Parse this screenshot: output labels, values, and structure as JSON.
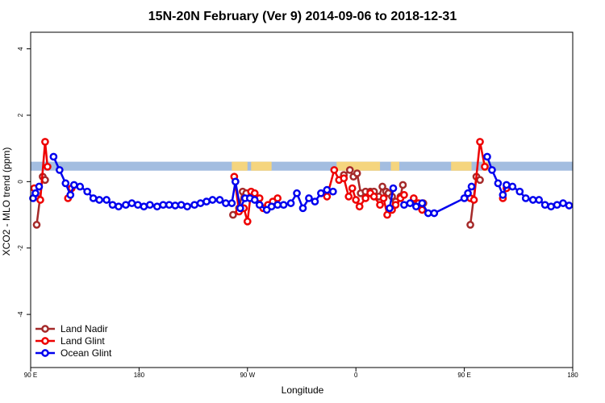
{
  "chart_data": {
    "type": "line",
    "title": "15N-20N February (Ver 9)   2014-09-06 to 2018-12-31",
    "xlabel": "Longitude",
    "ylabel": "XCO2 - MLO trend (ppm)",
    "x_ticks": [
      {
        "value": 0,
        "label": "90 E"
      },
      {
        "value": 90,
        "label": "180"
      },
      {
        "value": 180,
        "label": "90 W"
      },
      {
        "value": 270,
        "label": "0"
      },
      {
        "value": 360,
        "label": "90 E"
      },
      {
        "value": 450,
        "label": "180"
      }
    ],
    "y_ticks": [
      -4,
      -2,
      0,
      2,
      4
    ],
    "xlim": [
      0,
      450
    ],
    "ylim": [
      -5.6,
      4.5
    ],
    "land_band": {
      "ymin": 0.33,
      "ymax": 0.6,
      "ocean_color": "#a3bde0",
      "land_color": "#f5d57e"
    },
    "land_segments": [
      [
        167,
        180
      ],
      [
        183,
        200
      ],
      [
        254,
        290
      ],
      [
        299,
        306
      ],
      [
        349,
        366
      ],
      [
        375,
        380
      ]
    ],
    "series": [
      {
        "name": "Land Nadir",
        "color": "#a52a2a",
        "segments": [
          [
            [
              5,
              -1.3
            ],
            [
              10,
              0.15
            ],
            [
              12,
              0.05
            ]
          ],
          [
            [
              168,
              -1.0
            ],
            [
              173,
              -0.8
            ],
            [
              176,
              -0.3
            ],
            [
              179,
              -0.35
            ]
          ],
          [
            [
              260,
              0.2
            ],
            [
              265,
              0.35
            ],
            [
              268,
              0.15
            ],
            [
              271,
              0.25
            ],
            [
              274,
              -0.35
            ],
            [
              278,
              -0.3
            ],
            [
              282,
              -0.3
            ],
            [
              285,
              -0.3
            ],
            [
              289,
              -0.45
            ],
            [
              292,
              -0.15
            ],
            [
              295,
              -0.3
            ],
            [
              297,
              -0.35
            ],
            [
              300,
              -0.45
            ],
            [
              303,
              -0.6
            ],
            [
              307,
              -0.45
            ],
            [
              309,
              -0.1
            ]
          ],
          [
            [
              320,
              -0.7
            ],
            [
              326,
              -0.65
            ]
          ],
          [
            [
              365,
              -1.3
            ],
            [
              370,
              0.15
            ],
            [
              373,
              0.05
            ]
          ]
        ]
      },
      {
        "name": "Land Glint",
        "color": "#ee0000",
        "segments": [
          [
            [
              3,
              -0.2
            ],
            [
              8,
              -0.55
            ],
            [
              12,
              1.2
            ],
            [
              14,
              0.45
            ]
          ],
          [
            [
              31,
              -0.5
            ],
            [
              34,
              -0.2
            ]
          ],
          [
            [
              169,
              0.15
            ],
            [
              173,
              -0.9
            ],
            [
              177,
              -0.8
            ],
            [
              180,
              -1.2
            ],
            [
              183,
              -0.3
            ],
            [
              186,
              -0.35
            ],
            [
              190,
              -0.5
            ],
            [
              193,
              -0.8
            ],
            [
              197,
              -0.7
            ],
            [
              201,
              -0.6
            ],
            [
              205,
              -0.5
            ]
          ],
          [
            [
              246,
              -0.45
            ],
            [
              252,
              0.35
            ],
            [
              256,
              0.05
            ],
            [
              260,
              0.1
            ],
            [
              264,
              -0.45
            ],
            [
              267,
              -0.2
            ],
            [
              270,
              -0.55
            ],
            [
              273,
              -0.75
            ],
            [
              278,
              -0.5
            ],
            [
              282,
              -0.35
            ],
            [
              285,
              -0.45
            ],
            [
              290,
              -0.7
            ],
            [
              293,
              -0.5
            ],
            [
              296,
              -1.0
            ],
            [
              300,
              -0.85
            ],
            [
              303,
              -0.7
            ],
            [
              307,
              -0.5
            ],
            [
              310,
              -0.4
            ]
          ],
          [
            [
              318,
              -0.5
            ],
            [
              322,
              -0.65
            ],
            [
              325,
              -0.85
            ]
          ],
          [
            [
              365,
              -0.5
            ],
            [
              368,
              -0.55
            ],
            [
              373,
              1.2
            ],
            [
              377,
              0.45
            ]
          ],
          [
            [
              392,
              -0.5
            ],
            [
              395,
              -0.2
            ]
          ]
        ]
      },
      {
        "name": "Ocean Glint",
        "color": "#0000ee",
        "segments": [
          [
            [
              2,
              -0.5
            ],
            [
              4,
              -0.35
            ],
            [
              7,
              -0.15
            ]
          ],
          [
            [
              19,
              0.75
            ],
            [
              24,
              0.35
            ],
            [
              29,
              -0.05
            ],
            [
              33,
              -0.4
            ],
            [
              36,
              -0.1
            ],
            [
              41,
              -0.15
            ],
            [
              47,
              -0.3
            ],
            [
              52,
              -0.5
            ],
            [
              57,
              -0.55
            ],
            [
              63,
              -0.55
            ],
            [
              68,
              -0.7
            ],
            [
              73,
              -0.75
            ],
            [
              79,
              -0.7
            ],
            [
              84,
              -0.65
            ],
            [
              89,
              -0.7
            ],
            [
              94,
              -0.75
            ],
            [
              99,
              -0.7
            ],
            [
              105,
              -0.75
            ],
            [
              110,
              -0.7
            ],
            [
              115,
              -0.7
            ],
            [
              120,
              -0.72
            ],
            [
              125,
              -0.7
            ],
            [
              130,
              -0.75
            ],
            [
              136,
              -0.7
            ],
            [
              141,
              -0.65
            ],
            [
              146,
              -0.6
            ],
            [
              151,
              -0.55
            ],
            [
              157,
              -0.55
            ],
            [
              162,
              -0.65
            ],
            [
              167,
              -0.65
            ],
            [
              170,
              0.0
            ],
            [
              174,
              -0.8
            ],
            [
              178,
              -0.5
            ],
            [
              182,
              -0.5
            ],
            [
              186,
              -0.55
            ],
            [
              190,
              -0.7
            ],
            [
              196,
              -0.85
            ],
            [
              200,
              -0.75
            ],
            [
              205,
              -0.7
            ],
            [
              210,
              -0.7
            ],
            [
              216,
              -0.65
            ],
            [
              221,
              -0.35
            ],
            [
              226,
              -0.8
            ],
            [
              231,
              -0.5
            ],
            [
              236,
              -0.6
            ],
            [
              241,
              -0.35
            ],
            [
              246,
              -0.25
            ],
            [
              251,
              -0.3
            ]
          ],
          [
            [
              298,
              -0.8
            ],
            [
              301,
              -0.2
            ]
          ],
          [
            [
              310,
              -0.7
            ],
            [
              315,
              -0.65
            ],
            [
              320,
              -0.75
            ],
            [
              325,
              -0.65
            ],
            [
              330,
              -0.95
            ],
            [
              335,
              -0.95
            ],
            [
              360,
              -0.5
            ],
            [
              363,
              -0.35
            ],
            [
              366,
              -0.15
            ]
          ],
          [
            [
              379,
              0.75
            ],
            [
              383,
              0.35
            ],
            [
              388,
              -0.05
            ],
            [
              392,
              -0.4
            ],
            [
              395,
              -0.1
            ],
            [
              400,
              -0.15
            ],
            [
              406,
              -0.3
            ],
            [
              411,
              -0.5
            ],
            [
              417,
              -0.55
            ],
            [
              422,
              -0.55
            ],
            [
              427,
              -0.7
            ],
            [
              432,
              -0.75
            ],
            [
              437,
              -0.7
            ],
            [
              442,
              -0.65
            ],
            [
              447,
              -0.72
            ]
          ]
        ]
      }
    ]
  }
}
